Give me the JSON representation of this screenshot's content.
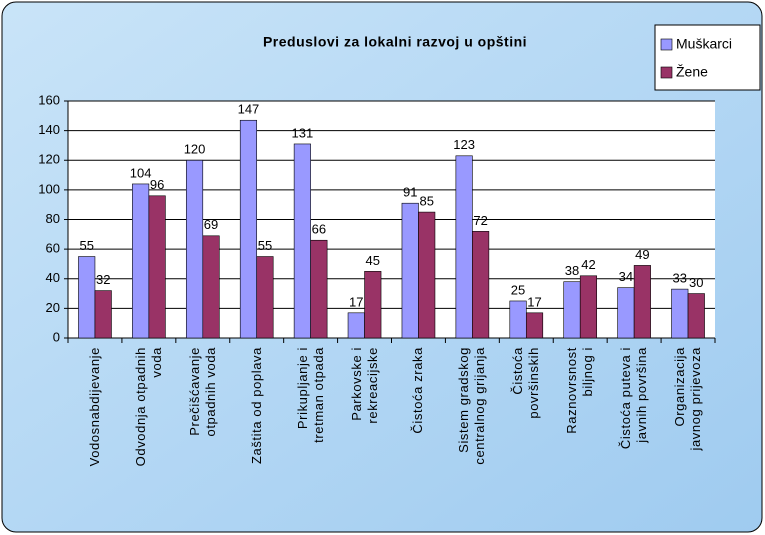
{
  "chart_data": {
    "type": "bar",
    "title": "Preduslovi za lokalni razvoj u opštini",
    "categories": [
      "Vodosnabdijevanje",
      "Odvodnja otpadnih\nvoda",
      "Prečišćavanje\notpadnih voda",
      "Zaštita od poplava",
      "Prikupljanje i\ntretman otpada",
      "Parkovske i\nrekreacijske",
      "Čistoća zraka",
      "Sistem gradskog\ncentralnog grijanja",
      "Čistoća\npovršinskih",
      "Raznovrsnost\nbiljnog i",
      "Čistoća puteva i\njavnih površina",
      "Organizacija\njavnog prijevoza"
    ],
    "series": [
      {
        "name": "Muškarci",
        "color": "#9999ff",
        "values": [
          55,
          104,
          120,
          147,
          131,
          17,
          91,
          123,
          25,
          38,
          34,
          33
        ]
      },
      {
        "name": "Žene",
        "color": "#993366",
        "values": [
          32,
          96,
          69,
          55,
          66,
          45,
          85,
          72,
          17,
          42,
          49,
          30
        ]
      }
    ],
    "ylim": [
      0,
      160
    ],
    "yticks": [
      0,
      20,
      40,
      60,
      80,
      100,
      120,
      140,
      160
    ],
    "grid": true,
    "legend": "right"
  }
}
